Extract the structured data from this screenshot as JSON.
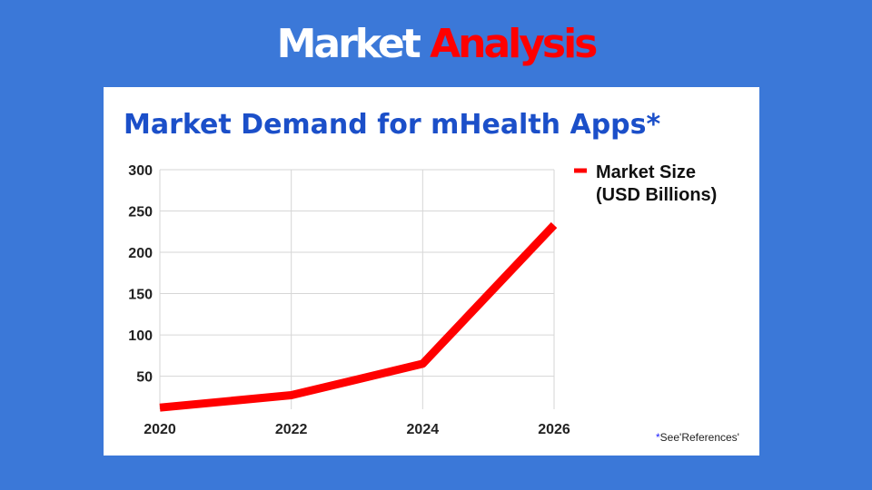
{
  "slide": {
    "title_word1": "Market",
    "title_word2": "Analysis"
  },
  "footnote": {
    "star": "*",
    "text": "See'References'"
  },
  "chart_data": {
    "type": "line",
    "title": "Market Demand for mHealth Apps*",
    "x": [
      2020,
      2022,
      2024,
      2026
    ],
    "x_tick_labels": [
      "2020",
      "2022",
      "2024",
      "2026"
    ],
    "y_ticks": [
      50,
      100,
      150,
      200,
      250,
      300
    ],
    "ylim": [
      10,
      300
    ],
    "xlim": [
      2020,
      2026
    ],
    "grid": true,
    "legend_position": "top-right",
    "series": [
      {
        "name": "Market Size (USD Billions)",
        "legend_lines": [
          "Market Size",
          "(USD Billions)"
        ],
        "values": [
          12,
          27,
          65,
          233
        ],
        "color": "#ff0000"
      }
    ]
  }
}
